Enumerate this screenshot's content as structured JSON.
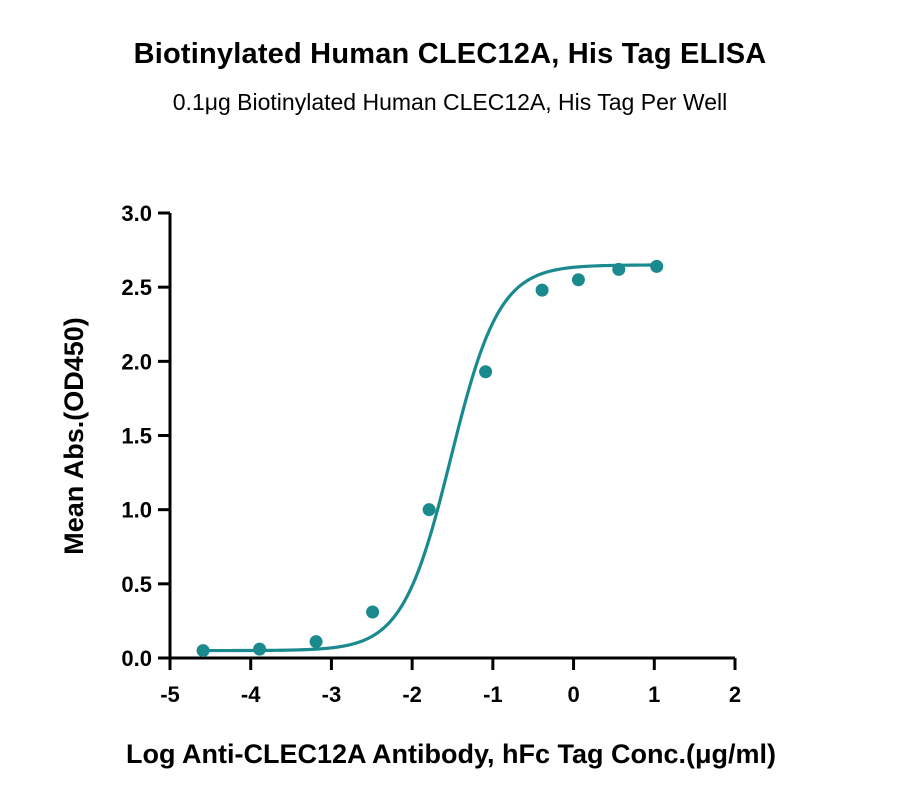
{
  "chart_data": {
    "type": "scatter",
    "title": "Biotinylated Human CLEC12A, His Tag ELISA",
    "subtitle": "0.1μg Biotinylated Human CLEC12A, His Tag Per Well",
    "xlabel": "Log Anti-CLEC12A Antibody, hFc Tag Conc.(μg/ml)",
    "ylabel": "Mean Abs.(OD450)",
    "xlim": [
      -5,
      2
    ],
    "ylim": [
      0.0,
      3.0
    ],
    "x_ticks": [
      "-5",
      "-4",
      "-3",
      "-2",
      "-1",
      "0",
      "1",
      "2"
    ],
    "y_ticks": [
      "0.0",
      "0.5",
      "1.0",
      "1.5",
      "2.0",
      "2.5",
      "3.0"
    ],
    "grid": false,
    "series": [
      {
        "color": "#1a8a8f",
        "x": [
          -4.59,
          -3.89,
          -3.19,
          -2.49,
          -1.79,
          -1.09,
          -0.39,
          0.06,
          0.56,
          1.03
        ],
        "y": [
          0.05,
          0.06,
          0.11,
          0.31,
          1.0,
          1.93,
          2.48,
          2.55,
          2.62,
          2.64
        ]
      }
    ],
    "fit_curve": {
      "model": "4PL",
      "bottom": 0.05,
      "top": 2.65,
      "logEC50": -1.52,
      "hill": 1.45
    }
  }
}
